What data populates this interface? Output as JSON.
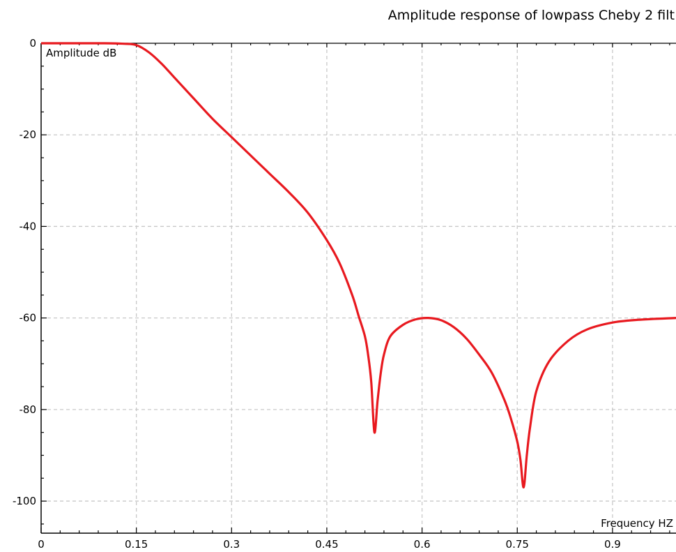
{
  "chart_data": {
    "type": "line",
    "title": "Amplitude response of lowpass Cheby 2 filt",
    "xlabel": "Frequency HZ",
    "ylabel": "Amplitude dB",
    "xlim": [
      0,
      1
    ],
    "ylim": [
      -107,
      0
    ],
    "x_ticks": [
      0,
      0.15,
      0.3,
      0.45,
      0.6,
      0.75,
      0.9
    ],
    "x_tick_labels": [
      "0",
      "0.15",
      "0.3",
      "0.45",
      "0.6",
      "0.75",
      "0.9"
    ],
    "y_ticks": [
      0,
      -20,
      -40,
      -60,
      -80,
      -100
    ],
    "y_tick_labels": [
      "0",
      "-20",
      "-40",
      "-60",
      "-80",
      "-100"
    ],
    "grid": true,
    "series": [
      {
        "color": "#e8191f",
        "x": [
          0,
          0.05,
          0.1,
          0.13,
          0.15,
          0.17,
          0.19,
          0.21,
          0.24,
          0.27,
          0.3,
          0.33,
          0.36,
          0.39,
          0.42,
          0.45,
          0.47,
          0.49,
          0.5,
          0.51,
          0.515,
          0.52,
          0.525,
          0.53,
          0.535,
          0.54,
          0.55,
          0.57,
          0.59,
          0.61,
          0.63,
          0.65,
          0.67,
          0.69,
          0.71,
          0.73,
          0.74,
          0.75,
          0.755,
          0.76,
          0.765,
          0.77,
          0.78,
          0.8,
          0.83,
          0.86,
          0.9,
          0.94,
          1.0
        ],
        "y": [
          0,
          0,
          0,
          -0.1,
          -0.4,
          -2,
          -4.5,
          -7.5,
          -12,
          -16.5,
          -20.5,
          -24.5,
          -28.5,
          -32.5,
          -37,
          -43,
          -48,
          -55,
          -59.5,
          -64,
          -68,
          -74,
          -85,
          -78,
          -72,
          -68,
          -64,
          -61.5,
          -60.3,
          -60,
          -60.5,
          -62,
          -64.5,
          -68,
          -72,
          -78,
          -82,
          -87,
          -91,
          -97,
          -90,
          -84,
          -76,
          -69.5,
          -65,
          -62.5,
          -61,
          -60.4,
          -60
        ]
      }
    ]
  }
}
